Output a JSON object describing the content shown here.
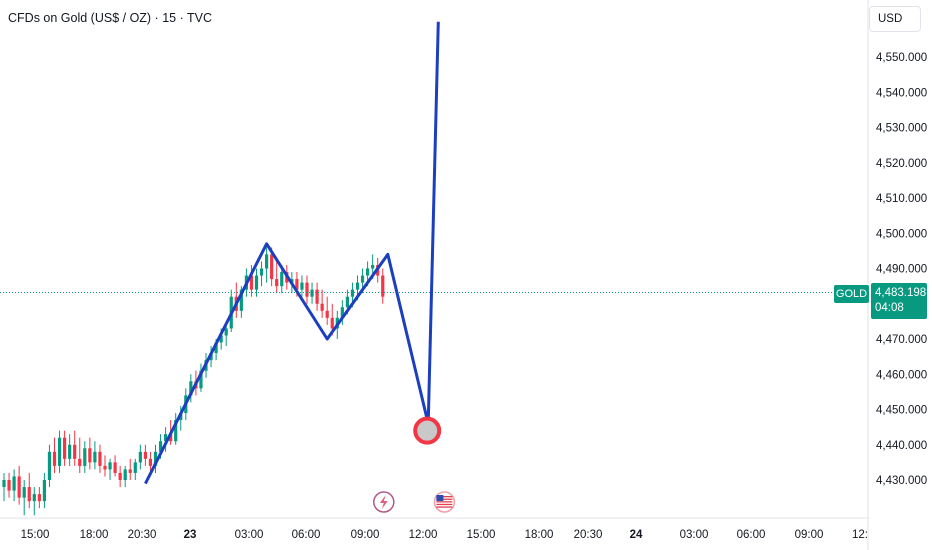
{
  "chart_title": "CFDs on Gold (US$ / OZ) · 15 · TVC",
  "currency_label": "USD",
  "symbol_label": "GOLD",
  "last_price": "4,483.198",
  "countdown": "04:08",
  "colors": {
    "up": "#089981",
    "down": "#f23645",
    "drawing": "#1c3fbf",
    "price_line": "#089981",
    "target_circle": "#f23645"
  },
  "icons": {
    "earnings": "lightning-event-icon",
    "economic": "us-flag-event-icon"
  },
  "chart_data": {
    "type": "candlestick",
    "title": "CFDs on Gold (US$ / OZ) · 15 · TVC",
    "interval": "15",
    "y_ticks": [
      "4,430.000",
      "4,440.000",
      "4,450.000",
      "4,460.000",
      "4,470.000",
      "4,480.000",
      "4,490.000",
      "4,500.000",
      "4,510.000",
      "4,520.000",
      "4,530.000",
      "4,540.000",
      "4,550.000"
    ],
    "x_ticks": [
      "15:00",
      "18:00",
      "20:30",
      "23",
      "03:00",
      "06:00",
      "09:00",
      "12:00",
      "15:00",
      "18:00",
      "20:30",
      "24",
      "03:00",
      "06:00",
      "09:00",
      "12:"
    ],
    "ylim": [
      4422,
      4568
    ],
    "last_price": 4483.198,
    "candles": [
      {
        "o": 4428,
        "h": 4432,
        "l": 4424,
        "c": 4430
      },
      {
        "o": 4430,
        "h": 4432,
        "l": 4425,
        "c": 4427
      },
      {
        "o": 4427,
        "h": 4433,
        "l": 4424,
        "c": 4431
      },
      {
        "o": 4431,
        "h": 4434,
        "l": 4423,
        "c": 4425
      },
      {
        "o": 4425,
        "h": 4430,
        "l": 4420,
        "c": 4428
      },
      {
        "o": 4428,
        "h": 4432,
        "l": 4422,
        "c": 4424
      },
      {
        "o": 4424,
        "h": 4428,
        "l": 4420,
        "c": 4426
      },
      {
        "o": 4426,
        "h": 4428,
        "l": 4422,
        "c": 4424
      },
      {
        "o": 4424,
        "h": 4432,
        "l": 4422,
        "c": 4430
      },
      {
        "o": 4430,
        "h": 4440,
        "l": 4428,
        "c": 4438
      },
      {
        "o": 4438,
        "h": 4442,
        "l": 4432,
        "c": 4434
      },
      {
        "o": 4434,
        "h": 4444,
        "l": 4432,
        "c": 4442
      },
      {
        "o": 4442,
        "h": 4444,
        "l": 4434,
        "c": 4436
      },
      {
        "o": 4436,
        "h": 4443,
        "l": 4434,
        "c": 4440
      },
      {
        "o": 4440,
        "h": 4444,
        "l": 4434,
        "c": 4436
      },
      {
        "o": 4436,
        "h": 4442,
        "l": 4432,
        "c": 4434
      },
      {
        "o": 4434,
        "h": 4441,
        "l": 4432,
        "c": 4439
      },
      {
        "o": 4439,
        "h": 4442,
        "l": 4433,
        "c": 4435
      },
      {
        "o": 4435,
        "h": 4441,
        "l": 4433,
        "c": 4438
      },
      {
        "o": 4438,
        "h": 4440,
        "l": 4432,
        "c": 4434
      },
      {
        "o": 4434,
        "h": 4437,
        "l": 4431,
        "c": 4433
      },
      {
        "o": 4433,
        "h": 4436,
        "l": 4430,
        "c": 4435
      },
      {
        "o": 4435,
        "h": 4437,
        "l": 4431,
        "c": 4432
      },
      {
        "o": 4432,
        "h": 4434,
        "l": 4428,
        "c": 4430
      },
      {
        "o": 4430,
        "h": 4434,
        "l": 4428,
        "c": 4433
      },
      {
        "o": 4433,
        "h": 4436,
        "l": 4430,
        "c": 4432
      },
      {
        "o": 4432,
        "h": 4436,
        "l": 4430,
        "c": 4435
      },
      {
        "o": 4435,
        "h": 4440,
        "l": 4433,
        "c": 4438
      },
      {
        "o": 4438,
        "h": 4440,
        "l": 4434,
        "c": 4436
      },
      {
        "o": 4436,
        "h": 4438,
        "l": 4432,
        "c": 4434
      },
      {
        "o": 4434,
        "h": 4440,
        "l": 4432,
        "c": 4438
      },
      {
        "o": 4438,
        "h": 4443,
        "l": 4436,
        "c": 4441
      },
      {
        "o": 4441,
        "h": 4445,
        "l": 4438,
        "c": 4443
      },
      {
        "o": 4443,
        "h": 4447,
        "l": 4440,
        "c": 4441
      },
      {
        "o": 4441,
        "h": 4449,
        "l": 4440,
        "c": 4447
      },
      {
        "o": 4447,
        "h": 4451,
        "l": 4444,
        "c": 4449
      },
      {
        "o": 4449,
        "h": 4456,
        "l": 4447,
        "c": 4454
      },
      {
        "o": 4454,
        "h": 4460,
        "l": 4452,
        "c": 4458
      },
      {
        "o": 4458,
        "h": 4461,
        "l": 4454,
        "c": 4456
      },
      {
        "o": 4456,
        "h": 4463,
        "l": 4455,
        "c": 4461
      },
      {
        "o": 4461,
        "h": 4466,
        "l": 4459,
        "c": 4464
      },
      {
        "o": 4464,
        "h": 4468,
        "l": 4462,
        "c": 4466
      },
      {
        "o": 4466,
        "h": 4470,
        "l": 4464,
        "c": 4469
      },
      {
        "o": 4469,
        "h": 4473,
        "l": 4467,
        "c": 4471
      },
      {
        "o": 4471,
        "h": 4474,
        "l": 4468,
        "c": 4473
      },
      {
        "o": 4473,
        "h": 4484,
        "l": 4472,
        "c": 4482
      },
      {
        "o": 4482,
        "h": 4486,
        "l": 4476,
        "c": 4478
      },
      {
        "o": 4478,
        "h": 4485,
        "l": 4476,
        "c": 4484
      },
      {
        "o": 4484,
        "h": 4490,
        "l": 4482,
        "c": 4488
      },
      {
        "o": 4488,
        "h": 4491,
        "l": 4482,
        "c": 4484
      },
      {
        "o": 4484,
        "h": 4490,
        "l": 4482,
        "c": 4488
      },
      {
        "o": 4488,
        "h": 4492,
        "l": 4485,
        "c": 4490
      },
      {
        "o": 4490,
        "h": 4496,
        "l": 4486,
        "c": 4494
      },
      {
        "o": 4494,
        "h": 4496,
        "l": 4485,
        "c": 4487
      },
      {
        "o": 4487,
        "h": 4492,
        "l": 4483,
        "c": 4485
      },
      {
        "o": 4485,
        "h": 4491,
        "l": 4483,
        "c": 4489
      },
      {
        "o": 4489,
        "h": 4491,
        "l": 4484,
        "c": 4486
      },
      {
        "o": 4486,
        "h": 4489,
        "l": 4483,
        "c": 4487
      },
      {
        "o": 4487,
        "h": 4489,
        "l": 4482,
        "c": 4484
      },
      {
        "o": 4484,
        "h": 4488,
        "l": 4482,
        "c": 4486
      },
      {
        "o": 4486,
        "h": 4488,
        "l": 4480,
        "c": 4482
      },
      {
        "o": 4482,
        "h": 4486,
        "l": 4480,
        "c": 4484
      },
      {
        "o": 4484,
        "h": 4486,
        "l": 4478,
        "c": 4480
      },
      {
        "o": 4480,
        "h": 4484,
        "l": 4476,
        "c": 4478
      },
      {
        "o": 4478,
        "h": 4482,
        "l": 4474,
        "c": 4476
      },
      {
        "o": 4476,
        "h": 4480,
        "l": 4471,
        "c": 4473
      },
      {
        "o": 4473,
        "h": 4478,
        "l": 4470,
        "c": 4476
      },
      {
        "o": 4476,
        "h": 4481,
        "l": 4474,
        "c": 4479
      },
      {
        "o": 4479,
        "h": 4484,
        "l": 4477,
        "c": 4482
      },
      {
        "o": 4482,
        "h": 4486,
        "l": 4479,
        "c": 4484
      },
      {
        "o": 4484,
        "h": 4488,
        "l": 4481,
        "c": 4486
      },
      {
        "o": 4486,
        "h": 4490,
        "l": 4483,
        "c": 4488
      },
      {
        "o": 4488,
        "h": 4492,
        "l": 4485,
        "c": 4490
      },
      {
        "o": 4490,
        "h": 4494,
        "l": 4487,
        "c": 4491
      },
      {
        "o": 4491,
        "h": 4493,
        "l": 4486,
        "c": 4488
      },
      {
        "o": 4488,
        "h": 4490,
        "l": 4480,
        "c": 4482
      }
    ],
    "drawing": {
      "type": "path",
      "points": [
        {
          "bar": 28,
          "price": 4429
        },
        {
          "bar": 52,
          "price": 4497
        },
        {
          "bar": 64,
          "price": 4470
        },
        {
          "bar": 76,
          "price": 4494
        },
        {
          "bar": 84,
          "price": 4446
        },
        {
          "bar": 86,
          "price": 4560
        }
      ]
    },
    "target_marker": {
      "bar": 84,
      "price": 4444
    },
    "events": [
      {
        "icon": "lightning-event-icon",
        "bar": 76
      },
      {
        "icon": "us-flag-event-icon",
        "bar": 88
      }
    ]
  }
}
